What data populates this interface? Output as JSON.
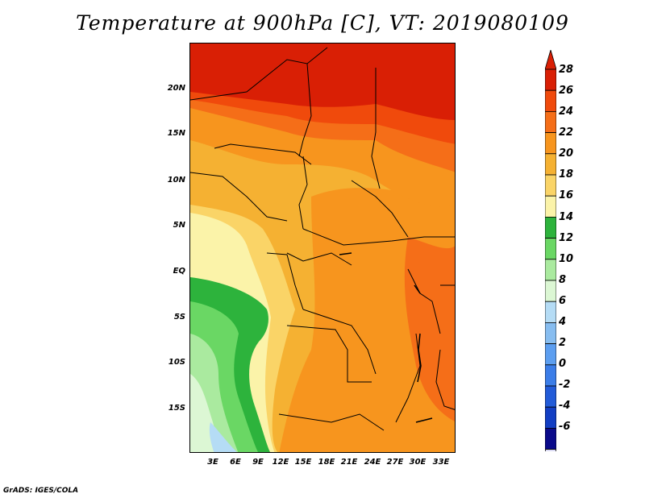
{
  "title": "Temperature at 900hPa [C], VT: 2019080109",
  "credit": "GrADS: IGES/COLA",
  "map": {
    "lat_labels": [
      "20N",
      "15N",
      "10N",
      "5N",
      "EQ",
      "5S",
      "10S",
      "15S"
    ],
    "lon_labels": [
      "3E",
      "6E",
      "9E",
      "12E",
      "15E",
      "18E",
      "21E",
      "24E",
      "27E",
      "30E",
      "33E"
    ]
  },
  "colorbar": {
    "labels": [
      "28",
      "26",
      "24",
      "22",
      "20",
      "18",
      "16",
      "14",
      "12",
      "10",
      "8",
      "6",
      "4",
      "2",
      "0",
      "-2",
      "-4",
      "-6"
    ],
    "colors": [
      "#d91f05",
      "#f04a0c",
      "#f56e18",
      "#f7951e",
      "#f5b132",
      "#fad467",
      "#fbf3a9",
      "#2db33c",
      "#6ad764",
      "#aaea9f",
      "#dcf7d4",
      "#b5dcf5",
      "#87bdf0",
      "#5c9ef0",
      "#3b7de8",
      "#225bd8",
      "#123ec3",
      "#0a0a8a",
      "#dcdcf5"
    ]
  }
}
